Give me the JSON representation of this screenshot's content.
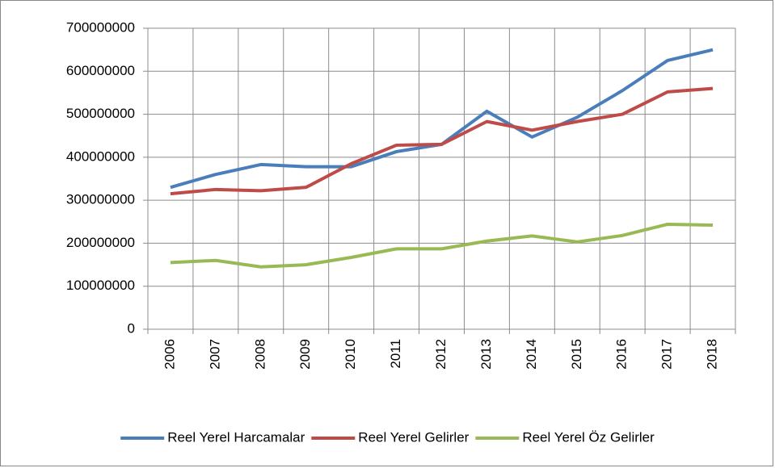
{
  "chart_data": {
    "type": "line",
    "categories": [
      "2006",
      "2007",
      "2008",
      "2009",
      "2010",
      "2011",
      "2012",
      "2013",
      "2014",
      "2015",
      "2016",
      "2017",
      "2018"
    ],
    "series": [
      {
        "name": "Reel Yerel Harcamalar",
        "color": "#4a7ebb",
        "values": [
          330000000,
          360000000,
          383000000,
          378000000,
          378000000,
          413000000,
          430000000,
          507000000,
          447000000,
          493000000,
          555000000,
          625000000,
          650000000
        ]
      },
      {
        "name": "Reel Yerel Gelirler",
        "color": "#be4b48",
        "values": [
          315000000,
          325000000,
          322000000,
          330000000,
          385000000,
          428000000,
          430000000,
          483000000,
          463000000,
          483000000,
          500000000,
          552000000,
          560000000
        ]
      },
      {
        "name": "Reel Yerel Öz Gelirler",
        "color": "#98b954",
        "values": [
          155000000,
          160000000,
          145000000,
          150000000,
          167000000,
          187000000,
          187000000,
          205000000,
          217000000,
          203000000,
          218000000,
          244000000,
          242000000
        ]
      }
    ],
    "ylim": [
      0,
      700000000
    ],
    "yticks": [
      0,
      100000000,
      200000000,
      300000000,
      400000000,
      500000000,
      600000000,
      700000000
    ],
    "grid": true,
    "legend": "bottom"
  }
}
